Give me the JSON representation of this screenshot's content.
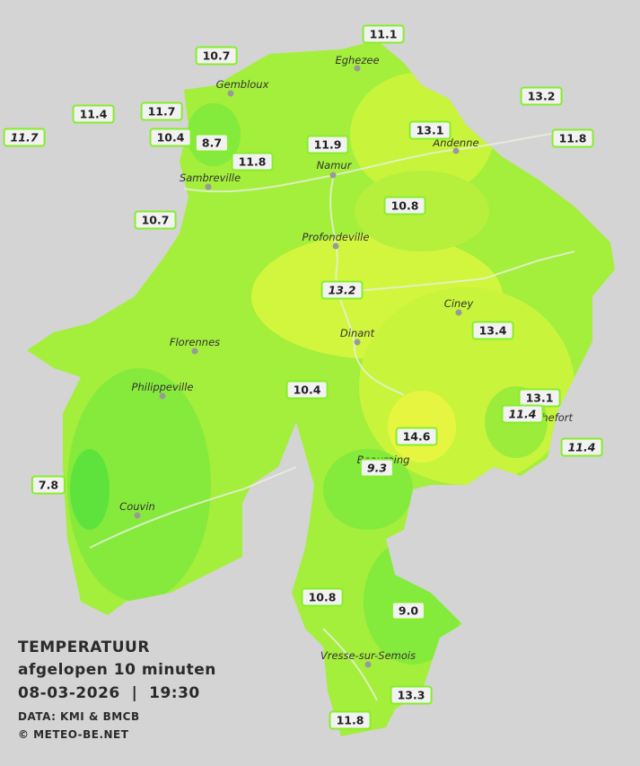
{
  "cities": [
    "Eghezee",
    "Gembloux",
    "Andenne",
    "Namur",
    "Sambreville",
    "Profondeville",
    "Ciney",
    "Dinant",
    "Florennes",
    "Philippeville",
    "Beauraing",
    "Rochefort",
    "Couvin",
    "Vresse-sur-Semois"
  ],
  "stations": [
    "11.1",
    "10.7",
    "13.2",
    "11.4",
    "11.7",
    "11.7",
    "13.1",
    "11.8",
    "10.4",
    "8.7",
    "11.9",
    "11.8",
    "10.8",
    "10.7",
    "13.2",
    "13.4",
    "10.4",
    "13.1",
    "11.4",
    "14.6",
    "11.4",
    "9.3",
    "7.8",
    "10.8",
    "9.0",
    "13.3",
    "11.8"
  ],
  "legend": {
    "title": "TEMPERATUUR",
    "subtitle": "afgelopen 10 minuten",
    "datetime": "08-03-2026  |  19:30",
    "source": "DATA: KMI & BMCB",
    "copyright": "© METEO-BE.NET"
  }
}
